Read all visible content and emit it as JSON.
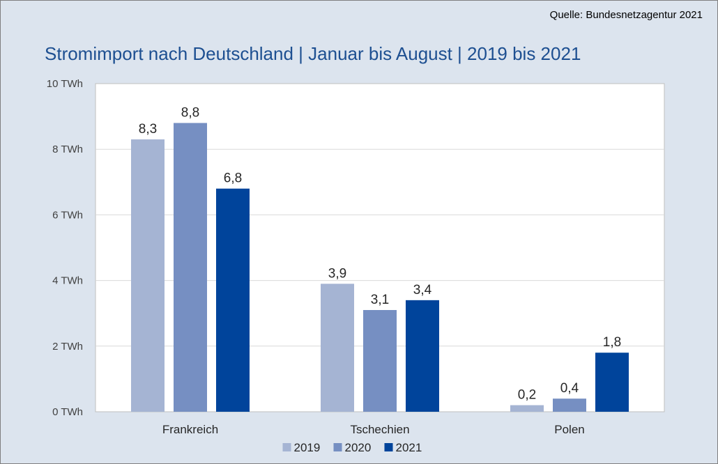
{
  "source": "Quelle: Bundesnetzagentur 2021",
  "colors": {
    "background": "#dce4ee",
    "plot": "#ffffff",
    "title": "#1d4f91",
    "grid": "#d9d9d9",
    "axis": "#bfbfbf"
  },
  "chart_data": {
    "type": "bar",
    "title": "Stromimport nach Deutschland | Januar bis August | 2019 bis 2021",
    "xlabel": "",
    "ylabel": "",
    "categories": [
      "Frankreich",
      "Tschechien",
      "Polen"
    ],
    "series": [
      {
        "name": "2019",
        "color": "#a5b4d3",
        "values": [
          8.3,
          3.9,
          0.2
        ],
        "labels": [
          "8,3",
          "3,9",
          "0,2"
        ]
      },
      {
        "name": "2020",
        "color": "#768fc2",
        "values": [
          8.8,
          3.1,
          0.4
        ],
        "labels": [
          "8,8",
          "3,1",
          "0,4"
        ]
      },
      {
        "name": "2021",
        "color": "#00449b",
        "values": [
          6.8,
          3.4,
          1.8
        ],
        "labels": [
          "6,8",
          "3,4",
          "1,8"
        ]
      }
    ],
    "ylim": [
      0,
      10
    ],
    "yticks": [
      0,
      2,
      4,
      6,
      8,
      10
    ],
    "ytick_labels": [
      "0 TWh",
      "2 TWh",
      "4 TWh",
      "6 TWh",
      "8 TWh",
      "10 TWh"
    ],
    "grid": true,
    "legend_position": "bottom"
  }
}
